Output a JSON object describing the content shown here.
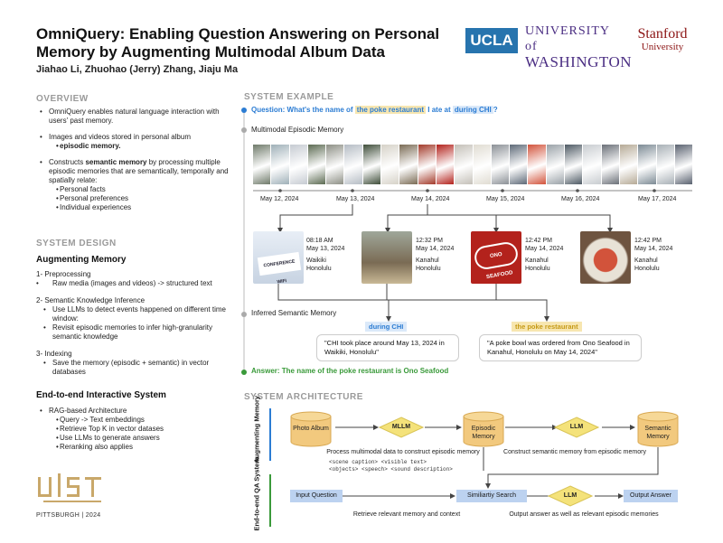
{
  "header": {
    "title": "OmniQuery: Enabling Question Answering on Personal Memory by Augmenting Multimodal Album Data",
    "authors": "Jiahao Li, Zhuohao (Jerry) Zhang, Jiaju Ma",
    "logos": {
      "ucla": "UCLA",
      "uw_line1": "UNIVERSITY of",
      "uw_line2": "WASHINGTON",
      "stanford_line1": "Stanford",
      "stanford_line2": "University"
    }
  },
  "overview": {
    "heading": "OVERVIEW",
    "b1": "OmniQuery enables natural language interaction with users' past memory.",
    "b2": "Images and videos stored in personal album",
    "b2_sub": "episodic memory.",
    "b3_pre": "Constructs ",
    "b3_bold": "semantic memory",
    "b3_post": " by processing multiple episodic memories that are semantically, temporally and spatially relate:",
    "b3_subs": [
      "Personal facts",
      "Personal preferences",
      "Individual experiences"
    ]
  },
  "design": {
    "heading": "SYSTEM DESIGN",
    "aug_heading": "Augmenting Memory",
    "s1": "1- Preprocessing",
    "s1_b": "Raw media (images and videos) -> structured text",
    "s2": "2- Semantic Knowledge Inference",
    "s2_b1": "Use LLMs to detect events happened on different time window:",
    "s2_b2": "Revisit episodic memories to infer high-granularity semantic knowledge",
    "s3": "3- Indexing",
    "s3_b": "Save the memory (episodic + semantic) in vector databases",
    "e2e_heading": "End-to-end Interactive System",
    "e2e_b": "RAG-based Architecture",
    "e2e_subs": [
      "Query -> Text embeddings",
      "Retrieve Top K in vector datases",
      "Use LLMs to generate answers",
      "Reranking also applies"
    ]
  },
  "uist": {
    "logo": "UIST",
    "location": "PITTSBURGH | 2024"
  },
  "example": {
    "heading": "SYSTEM EXAMPLE",
    "q_prefix": "Question: What's the name of ",
    "q_hl": "the poke restaurant",
    "q_mid": " I ate at ",
    "q_hl2": "during CHI",
    "q_suffix": "?",
    "episodic_label": "Multimodal Episodic Memory",
    "dates": [
      "May 12, 2024",
      "May 13, 2024",
      "May 14, 2024",
      "May 15, 2024",
      "May 16, 2024",
      "May 17, 2024"
    ],
    "cards": [
      {
        "time": "08:18 AM",
        "date": "May 13, 2024",
        "place1": "Waikiki",
        "place2": "Honolulu",
        "photo_text": "CONFERENCE WIFI"
      },
      {
        "time": "12:32 PM",
        "date": "May 14, 2024",
        "place1": "Kanahul",
        "place2": "Honolulu",
        "photo_text": ""
      },
      {
        "time": "12:42 PM",
        "date": "May 14, 2024",
        "place1": "Kanahul",
        "place2": "Honolulu",
        "photo_text": "ONO SEAFOOD"
      },
      {
        "time": "12:42 PM",
        "date": "May 14, 2024",
        "place1": "Kanahul",
        "place2": "Honolulu",
        "photo_text": ""
      }
    ],
    "semantic_label": "Inferred Semantic Memory",
    "tag1": "during CHI",
    "tag2": "the poke restaurant",
    "quote1": "\"CHI took place around May 13, 2024 in Waikiki, Honolulu\"",
    "quote2": "\"A poke bowl was ordered from Ono Seafood in Kanahul, Honolulu on May 14, 2024\"",
    "answer": "Answer: The name of the poke restaurant is Ono Seafood"
  },
  "architecture": {
    "heading": "SYSTEM ARCHITECTURE",
    "row1_label": "Augmenting Memory",
    "row2_label": "End-to-end QA System",
    "photo_album": "Photo Album",
    "mllm": "MLLM",
    "episodic": "Episodic Memory",
    "llm1": "LLM",
    "semantic": "Semantic Memory",
    "process_cap": "Process multimodal data to construct episodic memory",
    "code1": "<scene caption> <visible text>",
    "code2": "<objects> <speech> <sound description>",
    "construct_cap": "Construct semantic memory from episodic memory",
    "input_q": "Input Question",
    "sim_search": "Similiartiy Search",
    "llm2": "LLM",
    "output": "Output Answer",
    "retrieve_cap": "Retrieve relevant memory and context",
    "output_cap": "Output answer as well as relevant episodic memories"
  },
  "colors": {
    "blue": "#2b7cd3",
    "green": "#3a9a3a",
    "highlight": "#f7e6b0",
    "cyl": "#f2c97e",
    "diamond": "#f4e27a",
    "rect": "#bcd2f0"
  }
}
